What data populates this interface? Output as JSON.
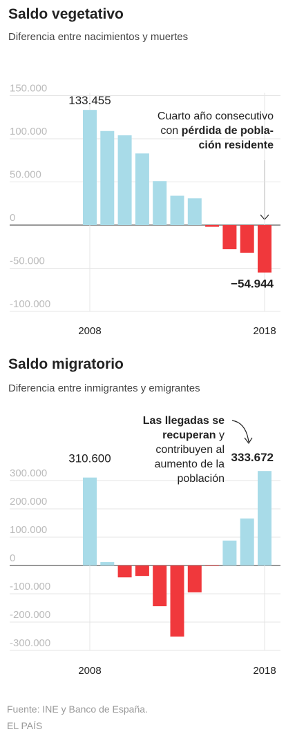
{
  "chart_data": [
    {
      "type": "bar",
      "title": "Saldo vegetativo",
      "subtitle": "Diferencia entre nacimientos y muertes",
      "categories": [
        "2008",
        null,
        null,
        null,
        null,
        null,
        null,
        null,
        null,
        null,
        "2018"
      ],
      "values": [
        133455,
        109000,
        104000,
        83000,
        51000,
        34000,
        31000,
        -2000,
        -28000,
        -32000,
        -54944
      ],
      "value_labels": [
        "133.455",
        null,
        null,
        null,
        null,
        null,
        null,
        null,
        null,
        null,
        "−54.944"
      ],
      "positive_color": "#a8dbe8",
      "negative_color": "#f0383c",
      "ylim": [
        -100000,
        150000
      ],
      "yticks": [
        {
          "value": 150000,
          "label": "150.000"
        },
        {
          "value": 100000,
          "label": "100.000"
        },
        {
          "value": 50000,
          "label": "50.000"
        },
        0,
        {
          "value": -50000,
          "label": "-50.000"
        },
        {
          "value": -100000,
          "label": "-100.000"
        }
      ],
      "grid": true,
      "annotation": [
        [
          {
            "text": "Cuarto año consecutivo",
            "bold": false
          }
        ],
        [
          {
            "text": "con ",
            "bold": false
          },
          {
            "text": "pérdida de pobla-",
            "bold": true
          }
        ],
        [
          {
            "text": "ción residente",
            "bold": true
          }
        ]
      ]
    },
    {
      "type": "bar",
      "title": "Saldo migratorio",
      "subtitle": "Diferencia entre inmigrantes y emigrantes",
      "categories": [
        "2008",
        null,
        null,
        null,
        null,
        null,
        null,
        null,
        null,
        null,
        "2018"
      ],
      "values": [
        310600,
        12000,
        -42000,
        -37000,
        -144000,
        -251000,
        -95000,
        -2000,
        88000,
        166000,
        333672
      ],
      "value_labels": [
        "310.600",
        null,
        null,
        null,
        null,
        null,
        null,
        null,
        null,
        null,
        "333.672"
      ],
      "positive_color": "#a8dbe8",
      "negative_color": "#f0383c",
      "ylim": [
        -300000,
        300000
      ],
      "yticks": [
        {
          "value": 300000,
          "label": "300.000"
        },
        {
          "value": 200000,
          "label": "200.000"
        },
        {
          "value": 100000,
          "label": "100.000"
        },
        0,
        {
          "value": -100000,
          "label": "-100.000"
        },
        {
          "value": -200000,
          "label": "-200.000"
        },
        {
          "value": -300000,
          "label": "-300.000"
        }
      ],
      "grid": true,
      "annotation": [
        [
          {
            "text": "Las llegadas se",
            "bold": true
          }
        ],
        [
          {
            "text": "recuperan",
            "bold": true
          },
          {
            "text": " y",
            "bold": false
          }
        ],
        [
          {
            "text": "contribuyen al",
            "bold": false
          }
        ],
        [
          {
            "text": "aumento de la",
            "bold": false
          }
        ],
        [
          {
            "text": "población",
            "bold": false
          }
        ]
      ]
    }
  ],
  "footer": {
    "source": "Fuente: INE y Banco de España.",
    "credit": "EL PAÍS"
  }
}
